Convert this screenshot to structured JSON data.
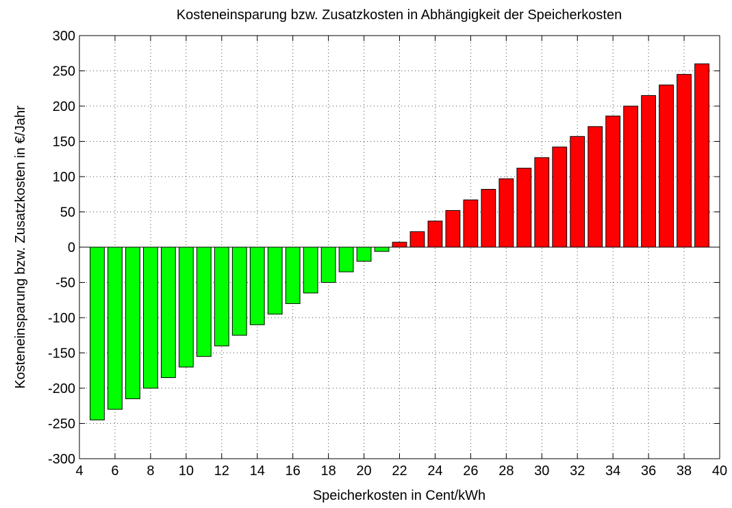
{
  "chart_data": {
    "type": "bar",
    "title": "Kosteneinsparung bzw. Zusatzkosten in Abhängigkeit der Speicherkosten",
    "x_label": "Speicherkosten in Cent/kWh",
    "y_label": "Kosteneinsparung bzw. Zusatzkosten in €/Jahr",
    "x": [
      5,
      6,
      7,
      8,
      9,
      10,
      11,
      12,
      13,
      14,
      15,
      16,
      17,
      18,
      19,
      20,
      21,
      22,
      23,
      24,
      25,
      26,
      27,
      28,
      29,
      30,
      31,
      32,
      33,
      34,
      35,
      36,
      37,
      38,
      39
    ],
    "values": [
      -245,
      -230,
      -215,
      -200,
      -185,
      -170,
      -155,
      -140,
      -125,
      -110,
      -95,
      -80,
      -65,
      -50,
      -35,
      -20,
      -6,
      7,
      22,
      37,
      52,
      67,
      82,
      97,
      112,
      127,
      142,
      157,
      171,
      186,
      200,
      215,
      230,
      245,
      260
    ],
    "color_negative": "#00ff00",
    "color_positive": "#ff0000",
    "xlim": [
      4,
      40
    ],
    "xticks": [
      4,
      6,
      8,
      10,
      12,
      14,
      16,
      18,
      20,
      22,
      24,
      26,
      28,
      30,
      32,
      34,
      36,
      38,
      40
    ],
    "ylim": [
      -300,
      300
    ],
    "yticks": [
      -300,
      -250,
      -200,
      -150,
      -100,
      -50,
      0,
      50,
      100,
      150,
      200,
      250,
      300
    ],
    "grid": true
  }
}
